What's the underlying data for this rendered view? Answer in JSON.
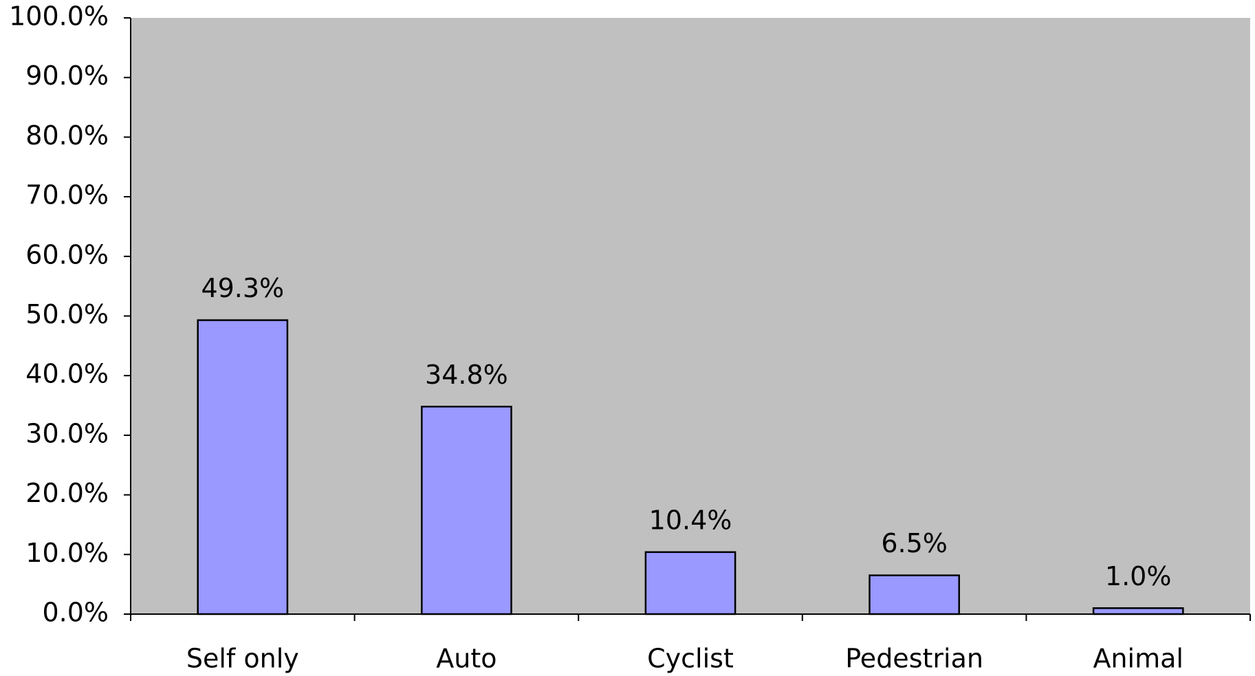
{
  "chart_data": {
    "type": "bar",
    "categories": [
      "Self only",
      "Auto",
      "Cyclist",
      "Pedestrian",
      "Animal"
    ],
    "values": [
      49.3,
      34.8,
      10.4,
      6.5,
      1.0
    ],
    "value_labels": [
      "49.3%",
      "34.8%",
      "10.4%",
      "6.5%",
      "1.0%"
    ],
    "color": "#9999ff",
    "ylim": [
      0,
      100
    ],
    "yticks": [
      {
        "value": 0,
        "label": "0.0%"
      },
      {
        "value": 10,
        "label": "10.0%"
      },
      {
        "value": 20,
        "label": "20.0%"
      },
      {
        "value": 30,
        "label": "30.0%"
      },
      {
        "value": 40,
        "label": "40.0%"
      },
      {
        "value": 50,
        "label": "50.0%"
      },
      {
        "value": 60,
        "label": "60.0%"
      },
      {
        "value": 70,
        "label": "70.0%"
      },
      {
        "value": 80,
        "label": "80.0%"
      },
      {
        "value": 90,
        "label": "90.0%"
      },
      {
        "value": 100,
        "label": "100.0%"
      }
    ],
    "grid": false
  }
}
